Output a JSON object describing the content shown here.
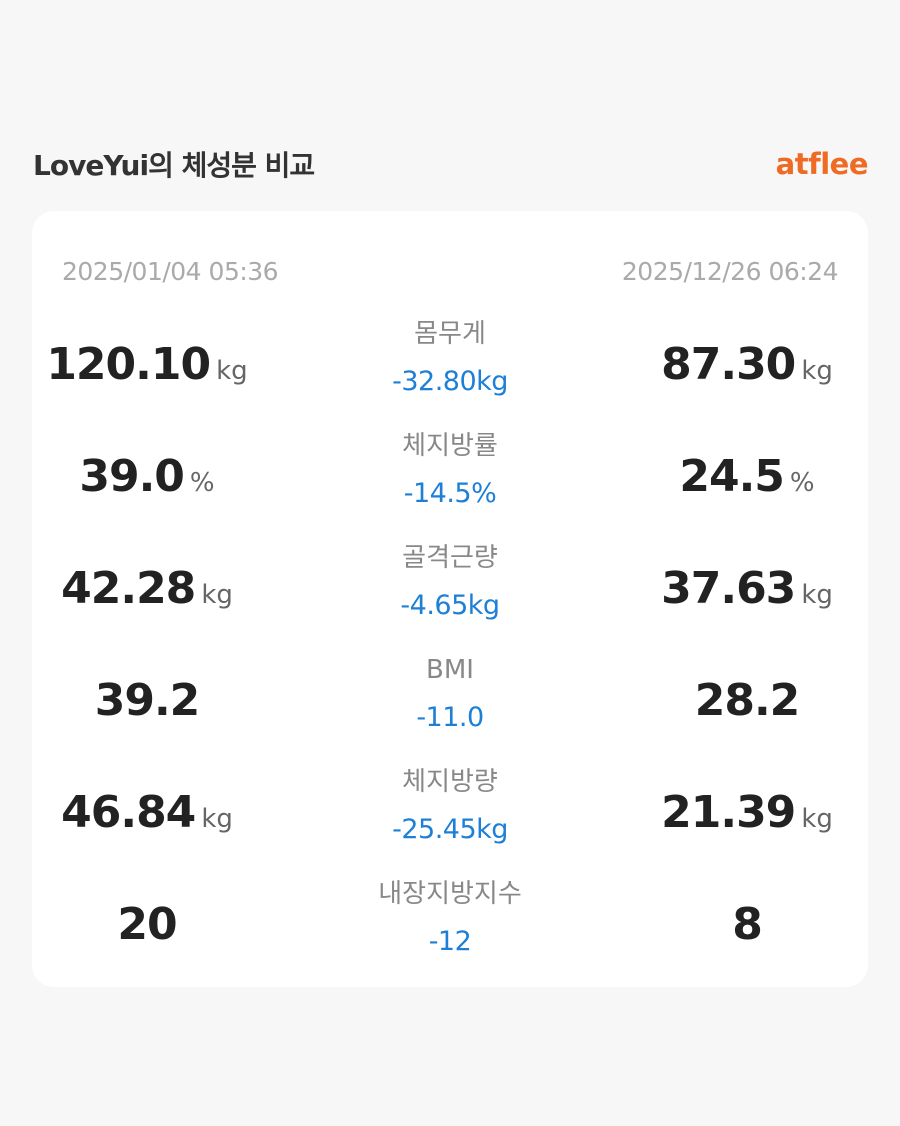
{
  "header": {
    "title": "LoveYui의 체성분 비교",
    "brand": "atflee"
  },
  "dates": {
    "before": "2025/01/04 05:36",
    "after": "2025/12/26 06:24"
  },
  "metrics": [
    {
      "label": "몸무게",
      "before": "120.10",
      "after": "87.30",
      "unit": "kg",
      "diff": "-32.80kg"
    },
    {
      "label": "체지방률",
      "before": "39.0",
      "after": "24.5",
      "unit": "%",
      "diff": "-14.5%"
    },
    {
      "label": "골격근량",
      "before": "42.28",
      "after": "37.63",
      "unit": "kg",
      "diff": "-4.65kg"
    },
    {
      "label": "BMI",
      "before": "39.2",
      "after": "28.2",
      "unit": "",
      "diff": "-11.0"
    },
    {
      "label": "체지방량",
      "before": "46.84",
      "after": "21.39",
      "unit": "kg",
      "diff": "-25.45kg"
    },
    {
      "label": "내장지방지수",
      "before": "20",
      "after": "8",
      "unit": "",
      "diff": "-12"
    }
  ],
  "colors": {
    "brand": "#ef6b24",
    "diff": "#1e7fd6",
    "background": "#f7f7f7",
    "card": "#ffffff"
  }
}
